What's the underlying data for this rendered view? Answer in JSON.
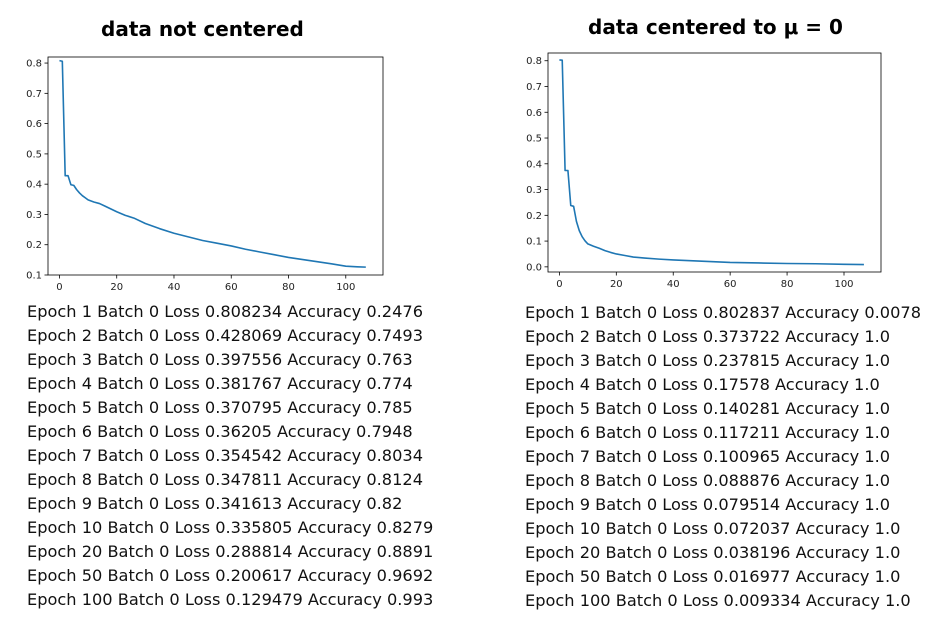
{
  "chart_data": [
    {
      "type": "line",
      "title": "data not centered",
      "xlabel": "",
      "ylabel": "",
      "xlim": [
        -4,
        113
      ],
      "ylim": [
        0.1,
        0.82
      ],
      "xticks": [
        "0",
        "20",
        "40",
        "60",
        "80",
        "100"
      ],
      "yticks": [
        "0.1",
        "0.2",
        "0.3",
        "0.4",
        "0.5",
        "0.6",
        "0.7",
        "0.8"
      ],
      "grid": false,
      "color": "#1f77b4",
      "x": [
        0,
        1,
        2,
        3,
        4,
        5,
        6,
        7,
        8,
        9,
        10,
        12,
        14,
        16,
        18,
        20,
        23,
        26,
        30,
        35,
        40,
        45,
        50,
        55,
        60,
        65,
        70,
        75,
        80,
        85,
        90,
        95,
        100,
        104,
        107
      ],
      "y": [
        0.808,
        0.806,
        0.428,
        0.428,
        0.398,
        0.396,
        0.382,
        0.371,
        0.362,
        0.355,
        0.348,
        0.341,
        0.336,
        0.327,
        0.318,
        0.309,
        0.297,
        0.288,
        0.27,
        0.253,
        0.238,
        0.226,
        0.214,
        0.205,
        0.196,
        0.185,
        0.176,
        0.167,
        0.158,
        0.151,
        0.144,
        0.137,
        0.129,
        0.127,
        0.126
      ]
    },
    {
      "type": "line",
      "title": "data centered to μ = 0",
      "xlabel": "",
      "ylabel": "",
      "xlim": [
        -4,
        113
      ],
      "ylim": [
        -0.02,
        0.83
      ],
      "xticks": [
        "0",
        "20",
        "40",
        "60",
        "80",
        "100"
      ],
      "yticks": [
        "0.0",
        "0.1",
        "0.2",
        "0.3",
        "0.4",
        "0.5",
        "0.6",
        "0.7",
        "0.8"
      ],
      "grid": false,
      "color": "#1f77b4",
      "x": [
        0,
        1,
        2,
        3,
        4,
        5,
        6,
        7,
        8,
        9,
        10,
        12,
        14,
        16,
        18,
        20,
        23,
        26,
        30,
        35,
        40,
        50,
        60,
        70,
        80,
        90,
        100,
        107
      ],
      "y": [
        0.803,
        0.802,
        0.374,
        0.374,
        0.238,
        0.235,
        0.176,
        0.14,
        0.117,
        0.101,
        0.089,
        0.08,
        0.072,
        0.063,
        0.056,
        0.05,
        0.044,
        0.038,
        0.034,
        0.03,
        0.027,
        0.022,
        0.017,
        0.015,
        0.013,
        0.012,
        0.01,
        0.009
      ]
    }
  ],
  "logs": {
    "left": [
      "Epoch 1 Batch 0 Loss 0.808234 Accuracy 0.2476",
      "Epoch 2 Batch 0 Loss 0.428069 Accuracy 0.7493",
      "Epoch 3 Batch 0 Loss 0.397556 Accuracy 0.763",
      "Epoch 4 Batch 0 Loss 0.381767 Accuracy 0.774",
      "Epoch 5 Batch 0 Loss 0.370795 Accuracy 0.785",
      "Epoch 6 Batch 0 Loss 0.36205 Accuracy 0.7948",
      "Epoch 7 Batch 0 Loss 0.354542 Accuracy 0.8034",
      "Epoch 8 Batch 0 Loss 0.347811 Accuracy 0.8124",
      "Epoch 9 Batch 0 Loss 0.341613 Accuracy 0.82",
      "Epoch 10 Batch 0 Loss 0.335805 Accuracy 0.8279",
      "Epoch 20 Batch 0 Loss 0.288814 Accuracy 0.8891",
      "Epoch 50 Batch 0 Loss 0.200617 Accuracy 0.9692",
      "Epoch 100 Batch 0 Loss 0.129479 Accuracy 0.993"
    ],
    "right": [
      "Epoch 1 Batch 0 Loss 0.802837 Accuracy 0.0078",
      "Epoch 2 Batch 0 Loss 0.373722 Accuracy 1.0",
      "Epoch 3 Batch 0 Loss 0.237815 Accuracy 1.0",
      "Epoch 4 Batch 0 Loss 0.17578 Accuracy 1.0",
      "Epoch 5 Batch 0 Loss 0.140281 Accuracy 1.0",
      "Epoch 6 Batch 0 Loss 0.117211 Accuracy 1.0",
      "Epoch 7 Batch 0 Loss 0.100965 Accuracy 1.0",
      "Epoch 8 Batch 0 Loss 0.088876 Accuracy 1.0",
      "Epoch 9 Batch 0 Loss 0.079514 Accuracy 1.0",
      "Epoch 10 Batch 0 Loss 0.072037 Accuracy 1.0",
      "Epoch 20 Batch 0 Loss 0.038196 Accuracy 1.0",
      "Epoch 50 Batch 0 Loss 0.016977 Accuracy 1.0",
      "Epoch 100 Batch 0 Loss 0.009334 Accuracy 1.0"
    ]
  }
}
